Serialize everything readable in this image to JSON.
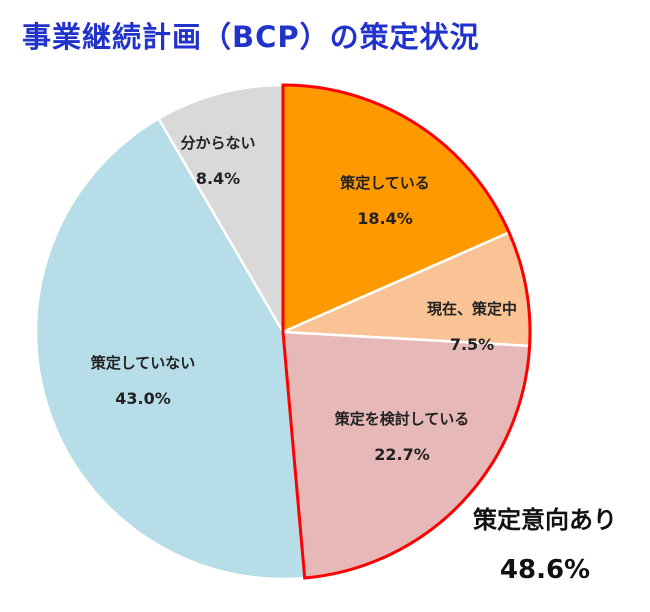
{
  "chart_data": {
    "type": "pie",
    "title": "事業継続計画（BCP）の策定状況",
    "slices": [
      {
        "label": "策定している",
        "value": 18.4,
        "value_label": "18.4%",
        "color": "#ff9900"
      },
      {
        "label": "現在、策定中",
        "value": 7.5,
        "value_label": "7.5%",
        "color": "#f9c396"
      },
      {
        "label": "策定を検討している",
        "value": 22.7,
        "value_label": "22.7%",
        "color": "#e6b9b8"
      },
      {
        "label": "策定していない",
        "value": 43.0,
        "value_label": "43.0%",
        "color": "#b7dde8"
      },
      {
        "label": "分からない",
        "value": 8.4,
        "value_label": "8.4%",
        "color": "#d9d9d9"
      }
    ],
    "annotation": {
      "label": "策定意向あり",
      "value": 48.6,
      "value_label": "48.6%",
      "highlight_color": "#ff0000"
    }
  }
}
